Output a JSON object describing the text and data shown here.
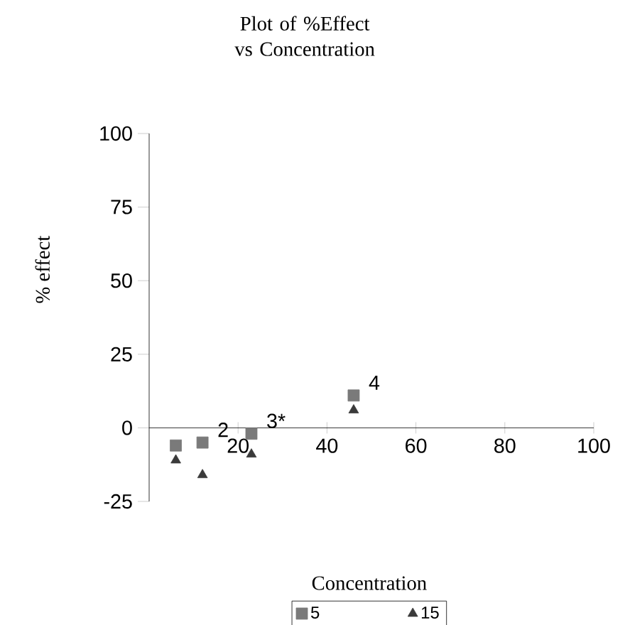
{
  "chart_data": {
    "type": "scatter",
    "title": "Plot of %Effect vs Concentration",
    "xlabel": "Concentration",
    "ylabel": "% effect",
    "xlim": [
      0,
      100
    ],
    "xticks": [
      20,
      40,
      60,
      80,
      100
    ],
    "ylim": [
      -25,
      100
    ],
    "yticks": [
      -25,
      0,
      25,
      50,
      75,
      100
    ],
    "x": [
      6,
      12,
      23,
      46
    ],
    "series": [
      {
        "name": "5",
        "color": "#7a7a7a",
        "marker": "square",
        "values": [
          -6,
          -5,
          -2,
          11
        ]
      },
      {
        "name": "15",
        "color": "#3a3a3a",
        "marker": "triangle",
        "values": [
          -11,
          -16,
          -9,
          6
        ]
      }
    ],
    "annotations": [
      {
        "text": "2",
        "x": 12,
        "y": -5
      },
      {
        "text": "3*",
        "x": 23,
        "y": -2
      },
      {
        "text": "4",
        "x": 46,
        "y": 11
      }
    ],
    "legend": "bottom",
    "grid": false
  }
}
